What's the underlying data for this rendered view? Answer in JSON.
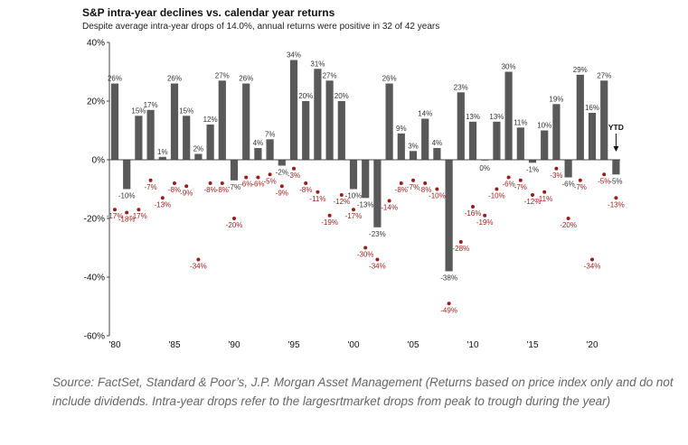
{
  "chart_data": {
    "type": "bar",
    "title": "S&P intra-year declines vs. calendar year returns",
    "subtitle": "Despite average intra-year drops of 14.0%, annual returns were positive in 32 of 42 years",
    "x": [
      1980,
      1981,
      1982,
      1983,
      1984,
      1985,
      1986,
      1987,
      1988,
      1989,
      1990,
      1991,
      1992,
      1993,
      1994,
      1995,
      1996,
      1997,
      1998,
      1999,
      2000,
      2001,
      2002,
      2003,
      2004,
      2005,
      2006,
      2007,
      2008,
      2009,
      2010,
      2011,
      2012,
      2013,
      2014,
      2015,
      2016,
      2017,
      2018,
      2019,
      2020,
      2021,
      2022
    ],
    "x_tick_labels": [
      {
        "year": 1980,
        "label": "'80"
      },
      {
        "year": 1985,
        "label": "'85"
      },
      {
        "year": 1990,
        "label": "'90"
      },
      {
        "year": 1995,
        "label": "'95"
      },
      {
        "year": 2000,
        "label": "'00"
      },
      {
        "year": 2005,
        "label": "'05"
      },
      {
        "year": 2010,
        "label": "'10"
      },
      {
        "year": 2015,
        "label": "'15"
      },
      {
        "year": 2020,
        "label": "'20"
      }
    ],
    "series": [
      {
        "role": "annual_return_bars",
        "color": "#595959",
        "values": [
          26,
          -10,
          15,
          17,
          1,
          26,
          15,
          2,
          12,
          27,
          -7,
          26,
          4,
          7,
          -2,
          34,
          20,
          31,
          27,
          20,
          -10,
          -13,
          -23,
          26,
          9,
          3,
          14,
          4,
          -38,
          23,
          13,
          0,
          13,
          30,
          11,
          -1,
          10,
          19,
          -6,
          29,
          16,
          27,
          -5
        ],
        "labels": [
          "26%",
          "-10%",
          "15%",
          "17%",
          "1%",
          "26%",
          "15%",
          "2%",
          "12%",
          "27%",
          "-7%",
          "26%",
          "4%",
          "7%",
          "-2%",
          "34%",
          "20%",
          "31%",
          "27%",
          "20%",
          "-10%",
          "-13%",
          "-23%",
          "26%",
          "9%",
          "3%",
          "14%",
          "4%",
          "-38%",
          "23%",
          "13%",
          "0%",
          "13%",
          "30%",
          "11%",
          "-1%",
          "10%",
          "19%",
          "-6%",
          "29%",
          "16%",
          "27%",
          "-5%"
        ]
      },
      {
        "role": "intra_year_decline_points",
        "color": "#9b1c1c",
        "values": [
          -17,
          -18,
          -17,
          -7,
          -13,
          -8,
          -9,
          -34,
          -8,
          -8,
          -20,
          -6,
          -6,
          -5,
          -9,
          -3,
          -8,
          -11,
          -19,
          -12,
          -17,
          -30,
          -34,
          -14,
          -8,
          -7,
          -8,
          -10,
          -49,
          -28,
          -16,
          -19,
          -10,
          -6,
          -7,
          -12,
          -11,
          -3,
          -20,
          -7,
          -34,
          -5,
          -13
        ],
        "labels": [
          "-17%",
          "-18%",
          "-17%",
          "-7%",
          "-13%",
          "-8%",
          "-9%",
          "-34%",
          "-8%",
          "-8%",
          "-20%",
          "-6%",
          "-6%",
          "-5%",
          "-9%",
          "-3%",
          "-8%",
          "-11%",
          "-19%",
          "-12%",
          "-17%",
          "-30%",
          "-34%",
          "-14%",
          "-8%",
          "-7%",
          "-8%",
          "-10%",
          "-49%",
          "-28%",
          "-16%",
          "-19%",
          "-10%",
          "-6%",
          "-7%",
          "-12%",
          "-11%",
          "-3%",
          "-20%",
          "-7%",
          "-34%",
          "-5%",
          "-13%"
        ]
      }
    ],
    "ylim": [
      -60,
      40
    ],
    "y_ticks": [
      {
        "value": 40,
        "label": "40%"
      },
      {
        "value": 20,
        "label": "20%"
      },
      {
        "value": 0,
        "label": "0%"
      },
      {
        "value": -20,
        "label": "-20%"
      },
      {
        "value": -40,
        "label": "-40%"
      },
      {
        "value": -60,
        "label": "-60%"
      }
    ],
    "annotations": [
      {
        "text": "YTD",
        "year": 2022
      }
    ],
    "grid": false
  },
  "source_note": "Source: FactSet, Standard & Poor’s, J.P. Morgan Asset Management (Returns based on price index only and do not include dividends.  Intra-year drops refer to the largesrtmarket drops from peak to trough during the year)"
}
